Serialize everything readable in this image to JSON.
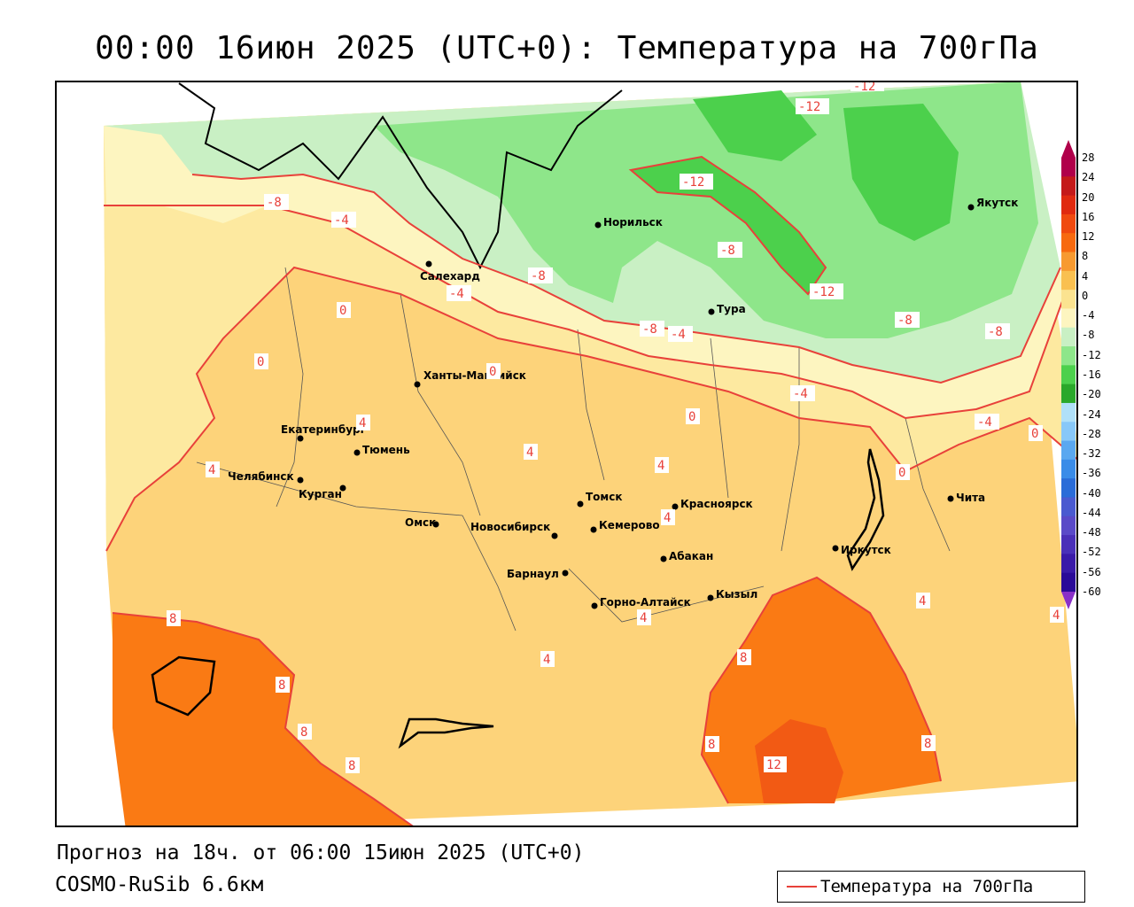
{
  "header": {
    "title": "00:00 16июн 2025 (UTC+0): Температура на 700гПа"
  },
  "footer": {
    "forecast": "Прогноз на 18ч. от 06:00 15июн 2025 (UTC+0)",
    "model": "COSMO-RuSib 6.6км"
  },
  "legend": {
    "label": "Температура на 700гПа",
    "line_color": "#e8413a"
  },
  "colorbar": {
    "ticks": [
      "28",
      "24",
      "20",
      "16",
      "12",
      "8",
      "4",
      "0",
      "-4",
      "-8",
      "-12",
      "-16",
      "-20",
      "-24",
      "-28",
      "-32",
      "-36",
      "-40",
      "-44",
      "-48",
      "-52",
      "-56",
      "-60"
    ],
    "colors": [
      "#b0004a",
      "#c41a1a",
      "#e02a10",
      "#f04a10",
      "#f76a10",
      "#f79a30",
      "#f9c050",
      "#fbe390",
      "#fdf5c0",
      "#c9f0c4",
      "#8ee68a",
      "#4cd04c",
      "#2aa82a",
      "#b0e0f8",
      "#88c8f8",
      "#5aa8f0",
      "#3a8ce8",
      "#2a6cd8",
      "#4a5ad0",
      "#5a4ac8",
      "#4a30b8",
      "#3a1aa8",
      "#2a0a98"
    ]
  },
  "cities": [
    {
      "name": "Якутск"
    },
    {
      "name": "Норильск"
    },
    {
      "name": "Салехард"
    },
    {
      "name": "Тура"
    },
    {
      "name": "Ханты-Мансийск"
    },
    {
      "name": "Екатеринбург"
    },
    {
      "name": "Тюмень"
    },
    {
      "name": "Челябинск"
    },
    {
      "name": "Курган"
    },
    {
      "name": "Омск"
    },
    {
      "name": "Новосибирск"
    },
    {
      "name": "Томск"
    },
    {
      "name": "Кемерово"
    },
    {
      "name": "Красноярск"
    },
    {
      "name": "Абакан"
    },
    {
      "name": "Барнаул"
    },
    {
      "name": "Горно-Алтайск"
    },
    {
      "name": "Кызыл"
    },
    {
      "name": "Иркутск"
    },
    {
      "name": "Чита"
    }
  ],
  "isotherm_labels": [
    "-12",
    "-12",
    "-12",
    "-12",
    "-8",
    "-8",
    "-8",
    "-8",
    "-8",
    "-8",
    "-4",
    "-4",
    "-4",
    "-4",
    "-4",
    "0",
    "0",
    "0",
    "0",
    "0",
    "0",
    "4",
    "4",
    "4",
    "4",
    "4",
    "4",
    "4",
    "4",
    "4",
    "8",
    "8",
    "8",
    "8",
    "8",
    "8",
    "8",
    "12"
  ]
}
